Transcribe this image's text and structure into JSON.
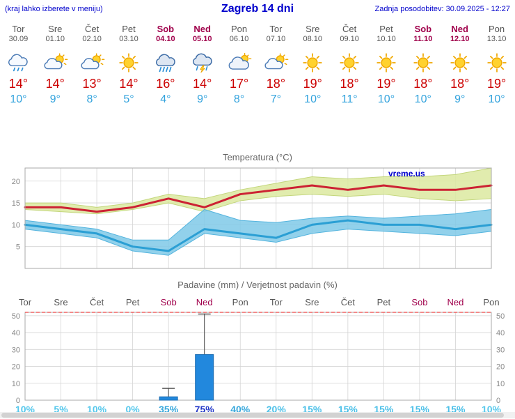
{
  "colors": {
    "header_text": "#0000cc",
    "weekday": "#555555",
    "weekend": "#a0004b",
    "tmax": "#cc0000",
    "tmin": "#33a3dd",
    "chart_title": "#666666",
    "grid": "#d4d4d4",
    "frame": "#aaaaaa",
    "temp_max_line": "#cc2233",
    "temp_max_band": "#dce9a0",
    "temp_min_line": "#2b9fd4",
    "temp_min_band": "#7fc9e8",
    "bar_fill": "#2288dd",
    "bar_stroke": "#1a6bb0",
    "whisker": "#444444",
    "dashed_line": "#ee4444",
    "watermark": "#0000cc"
  },
  "header": {
    "left_note": "(kraj lahko izberete v meniju)",
    "title": "Zagreb 14 dni",
    "updated": "Zadnja posodobitev: 30.09.2025 - 12:27"
  },
  "days": [
    {
      "name": "Tor",
      "date": "30.09",
      "weekend": false,
      "icon": "rain",
      "tmax": "14°",
      "tmin": "10°"
    },
    {
      "name": "Sre",
      "date": "01.10",
      "weekend": false,
      "icon": "partly",
      "tmax": "14°",
      "tmin": "9°"
    },
    {
      "name": "Čet",
      "date": "02.10",
      "weekend": false,
      "icon": "partly",
      "tmax": "13°",
      "tmin": "8°"
    },
    {
      "name": "Pet",
      "date": "03.10",
      "weekend": false,
      "icon": "sun",
      "tmax": "14°",
      "tmin": "5°"
    },
    {
      "name": "Sob",
      "date": "04.10",
      "weekend": true,
      "icon": "showers",
      "tmax": "16°",
      "tmin": "4°"
    },
    {
      "name": "Ned",
      "date": "05.10",
      "weekend": true,
      "icon": "storm",
      "tmax": "14°",
      "tmin": "9°"
    },
    {
      "name": "Pon",
      "date": "06.10",
      "weekend": false,
      "icon": "cloudy",
      "tmax": "17°",
      "tmin": "8°"
    },
    {
      "name": "Tor",
      "date": "07.10",
      "weekend": false,
      "icon": "partly",
      "tmax": "18°",
      "tmin": "7°"
    },
    {
      "name": "Sre",
      "date": "08.10",
      "weekend": false,
      "icon": "sun",
      "tmax": "19°",
      "tmin": "10°"
    },
    {
      "name": "Čet",
      "date": "09.10",
      "weekend": false,
      "icon": "sun",
      "tmax": "18°",
      "tmin": "11°"
    },
    {
      "name": "Pet",
      "date": "10.10",
      "weekend": false,
      "icon": "sun",
      "tmax": "19°",
      "tmin": "10°"
    },
    {
      "name": "Sob",
      "date": "11.10",
      "weekend": true,
      "icon": "sun",
      "tmax": "18°",
      "tmin": "10°"
    },
    {
      "name": "Ned",
      "date": "12.10",
      "weekend": true,
      "icon": "sun",
      "tmax": "18°",
      "tmin": "9°"
    },
    {
      "name": "Pon",
      "date": "13.10",
      "weekend": false,
      "icon": "sun",
      "tmax": "19°",
      "tmin": "10°"
    }
  ],
  "chart_data": [
    {
      "type": "line",
      "title": "Temperatura (°C)",
      "watermark": "vreme.us",
      "categories": [
        "Tor 30.09",
        "Sre 01.10",
        "Čet 02.10",
        "Pet 03.10",
        "Sob 04.10",
        "Ned 05.10",
        "Pon 06.10",
        "Tor 07.10",
        "Sre 08.10",
        "Čet 09.10",
        "Pet 10.10",
        "Sob 11.10",
        "Ned 12.10",
        "Pon 13.10"
      ],
      "ylim": [
        0,
        23
      ],
      "yticks": [
        5,
        10,
        15,
        20
      ],
      "series": [
        {
          "name": "max-temp",
          "values": [
            14,
            14,
            13,
            14,
            16,
            14,
            17,
            18,
            19,
            18,
            19,
            18,
            18,
            19
          ],
          "band_upper": [
            15,
            15,
            14,
            15,
            17,
            16,
            18,
            19.5,
            21,
            20.5,
            21,
            21,
            21.5,
            23
          ],
          "band_lower": [
            13.5,
            13,
            12.5,
            13.5,
            15,
            13,
            15.5,
            16.5,
            17,
            16.5,
            17,
            16,
            15.5,
            16
          ]
        },
        {
          "name": "min-temp",
          "values": [
            10,
            9,
            8,
            5,
            4,
            9,
            8,
            7,
            10,
            11,
            10,
            10,
            9,
            10
          ],
          "band_upper": [
            11,
            10,
            9,
            6.5,
            6.5,
            13.5,
            11,
            10.5,
            11.5,
            12,
            11.5,
            12,
            12.5,
            13.5
          ],
          "band_lower": [
            9,
            8,
            7,
            4,
            3,
            8,
            7,
            6,
            8,
            9,
            8.5,
            8,
            7.5,
            8.5
          ]
        }
      ],
      "legend_position": "none",
      "grid": true
    },
    {
      "type": "bar",
      "title": "Padavine (mm) / Verjetnost padavin (%)",
      "categories": [
        "Tor",
        "Sre",
        "Čet",
        "Pet",
        "Sob",
        "Ned",
        "Pon",
        "Tor",
        "Sre",
        "Čet",
        "Pet",
        "Sob",
        "Ned",
        "Pon"
      ],
      "weekend_mask": [
        false,
        false,
        false,
        false,
        true,
        true,
        false,
        false,
        false,
        false,
        false,
        true,
        true,
        false
      ],
      "values": [
        0,
        0,
        0,
        0,
        2,
        27,
        0,
        0,
        0,
        0,
        0,
        0,
        0,
        0
      ],
      "whisker_max": [
        0,
        0,
        0,
        0,
        7,
        51,
        0,
        0,
        0,
        0,
        0,
        0,
        0,
        0
      ],
      "probabilities": [
        "10%",
        "5%",
        "10%",
        "0%",
        "35%",
        "75%",
        "40%",
        "20%",
        "15%",
        "15%",
        "15%",
        "15%",
        "15%",
        "10%"
      ],
      "prob_colors": [
        "#56c8ec",
        "#56c8ec",
        "#56c8ec",
        "#56c8ec",
        "#38a8dc",
        "#2438c8",
        "#38a8dc",
        "#4cc0e8",
        "#4cc0e8",
        "#4cc0e8",
        "#4cc0e8",
        "#4cc0e8",
        "#4cc0e8",
        "#56c8ec"
      ],
      "ylim": [
        0,
        52
      ],
      "yticks": [
        0,
        10,
        20,
        30,
        40,
        50
      ],
      "grid": true
    }
  ]
}
